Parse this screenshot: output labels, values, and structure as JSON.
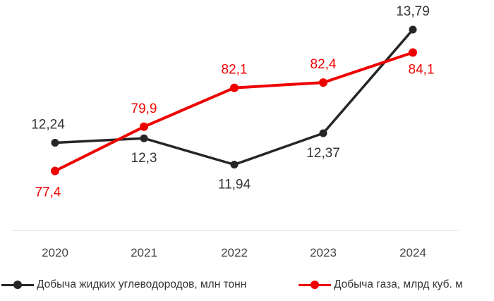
{
  "chart_data": {
    "type": "line",
    "categories": [
      "2020",
      "2021",
      "2022",
      "2023",
      "2024"
    ],
    "series": [
      {
        "name": "Добыча жидких углеводородов, млн тонн",
        "color": "#262626",
        "values": [
          12.24,
          12.3,
          11.94,
          12.37,
          13.79
        ],
        "labels": [
          "12,24",
          "12,3",
          "11,94",
          "12,37",
          "13,79"
        ]
      },
      {
        "name": "Добыча газа, млрд куб. м",
        "color": "#ee0000",
        "values": [
          77.4,
          79.9,
          82.1,
          82.4,
          84.1
        ],
        "labels": [
          "77,4",
          "79,9",
          "82,1",
          "82,4",
          "84,1"
        ]
      }
    ],
    "grid": false,
    "legend_position": "bottom"
  }
}
